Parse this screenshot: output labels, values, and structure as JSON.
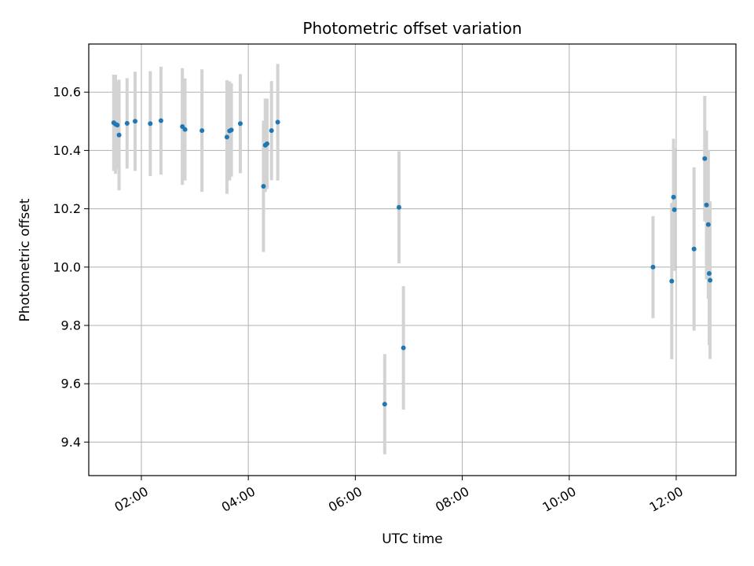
{
  "chart_data": {
    "type": "scatter",
    "title": "Photometric offset variation",
    "xlabel": "UTC time",
    "ylabel": "Photometric offset",
    "x_unit": "UTC time (HH:MM)",
    "xlim": [
      "01:01",
      "13:07"
    ],
    "ylim": [
      9.285,
      10.765
    ],
    "x_ticks": [
      "02:00",
      "04:00",
      "06:00",
      "08:00",
      "10:00",
      "12:00"
    ],
    "y_ticks": [
      9.4,
      9.6,
      9.8,
      10.0,
      10.2,
      10.4,
      10.6
    ],
    "y_tick_labels": [
      "9.4",
      "9.6",
      "9.8",
      "10.0",
      "10.2",
      "10.4",
      "10.6"
    ],
    "grid": true,
    "x_tick_rotation_deg": 30,
    "colors": {
      "point": "#1f77b4",
      "errorbar": "#d3d3d3",
      "grid": "#b0b0b0"
    },
    "series": [
      {
        "points": [
          {
            "x": "01:29",
            "y": 10.495,
            "yerr": 0.165
          },
          {
            "x": "01:31",
            "y": 10.49,
            "yerr": 0.17
          },
          {
            "x": "01:33",
            "y": 10.487,
            "yerr": 0.15
          },
          {
            "x": "01:35",
            "y": 10.453,
            "yerr": 0.19
          },
          {
            "x": "01:44",
            "y": 10.493,
            "yerr": 0.155
          },
          {
            "x": "01:53",
            "y": 10.5,
            "yerr": 0.17
          },
          {
            "x": "02:10",
            "y": 10.492,
            "yerr": 0.18
          },
          {
            "x": "02:22",
            "y": 10.502,
            "yerr": 0.185
          },
          {
            "x": "02:46",
            "y": 10.482,
            "yerr": 0.2
          },
          {
            "x": "02:49",
            "y": 10.472,
            "yerr": 0.175
          },
          {
            "x": "03:08",
            "y": 10.468,
            "yerr": 0.21
          },
          {
            "x": "03:36",
            "y": 10.446,
            "yerr": 0.195
          },
          {
            "x": "03:39",
            "y": 10.467,
            "yerr": 0.17
          },
          {
            "x": "03:41",
            "y": 10.47,
            "yerr": 0.16
          },
          {
            "x": "03:51",
            "y": 10.492,
            "yerr": 0.17
          },
          {
            "x": "04:17",
            "y": 10.277,
            "yerr": 0.225
          },
          {
            "x": "04:19",
            "y": 10.418,
            "yerr": 0.16
          },
          {
            "x": "04:21",
            "y": 10.423,
            "yerr": 0.155
          },
          {
            "x": "04:26",
            "y": 10.468,
            "yerr": 0.17
          },
          {
            "x": "04:33",
            "y": 10.497,
            "yerr": 0.2
          },
          {
            "x": "06:33",
            "y": 9.53,
            "yerr": 0.172
          },
          {
            "x": "06:49",
            "y": 10.205,
            "yerr": 0.192
          },
          {
            "x": "06:54",
            "y": 9.723,
            "yerr": 0.212
          },
          {
            "x": "11:34",
            "y": 10.0,
            "yerr": 0.175
          },
          {
            "x": "11:55",
            "y": 9.952,
            "yerr": 0.268
          },
          {
            "x": "11:57",
            "y": 10.24,
            "yerr": 0.2
          },
          {
            "x": "11:58",
            "y": 10.197,
            "yerr": 0.21
          },
          {
            "x": "12:20",
            "y": 10.062,
            "yerr": 0.28
          },
          {
            "x": "12:32",
            "y": 10.372,
            "yerr": 0.215
          },
          {
            "x": "12:34",
            "y": 10.213,
            "yerr": 0.255
          },
          {
            "x": "12:36",
            "y": 10.146,
            "yerr": 0.255
          },
          {
            "x": "12:37",
            "y": 9.978,
            "yerr": 0.245
          },
          {
            "x": "12:38",
            "y": 9.955,
            "yerr": 0.27
          }
        ]
      }
    ]
  }
}
